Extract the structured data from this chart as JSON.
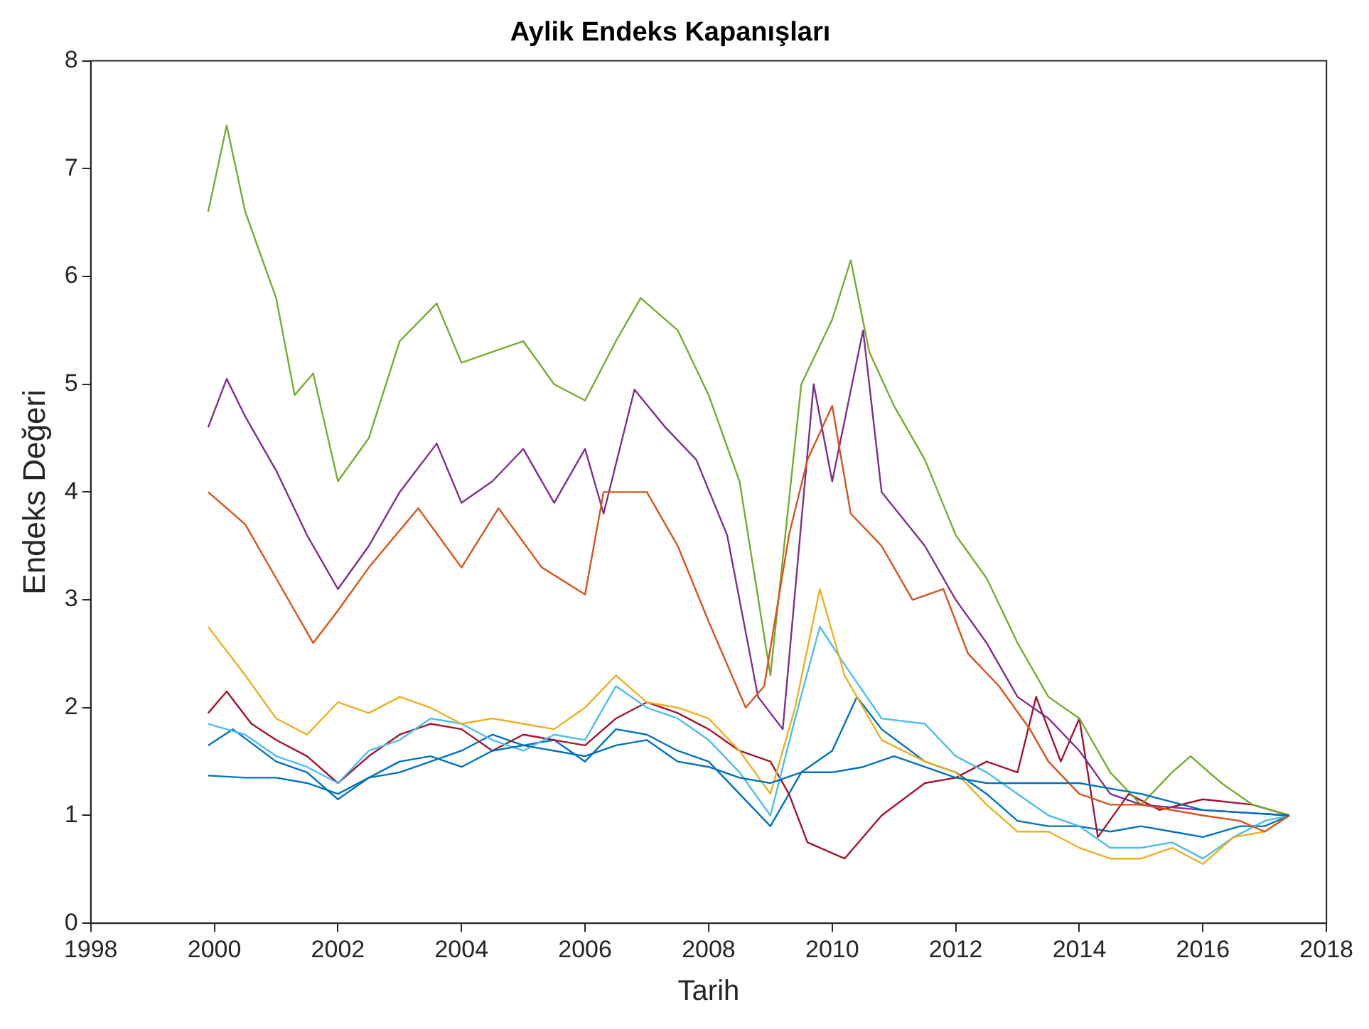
{
  "chart_data": {
    "type": "line",
    "title": "Aylik Endeks Kapanışları",
    "xlabel": "Tarih",
    "ylabel": "Endeks Değeri",
    "xlim": [
      1998,
      2018
    ],
    "xticks": [
      1998,
      2000,
      2002,
      2004,
      2006,
      2008,
      2010,
      2012,
      2014,
      2016,
      2018
    ],
    "ylim": [
      0,
      8
    ],
    "yticks": [
      0,
      1,
      2,
      3,
      4,
      5,
      6,
      7,
      8
    ],
    "grid": false,
    "legend": false,
    "marker": "none",
    "line_style": "solid",
    "series": [
      {
        "color": "#0072bd",
        "x": [
          1999.9,
          2000.5,
          2001,
          2001.5,
          2002,
          2002.5,
          2003,
          2003.5,
          2004,
          2004.5,
          2005,
          2005.5,
          2006,
          2006.5,
          2007,
          2007.5,
          2008,
          2008.5,
          2009,
          2009.5,
          2010,
          2010.5,
          2011,
          2011.5,
          2012,
          2012.5,
          2013,
          2013.5,
          2014,
          2014.5,
          2015,
          2016,
          2017.4
        ],
        "values": [
          1.37,
          1.35,
          1.35,
          1.3,
          1.2,
          1.35,
          1.5,
          1.55,
          1.45,
          1.6,
          1.65,
          1.6,
          1.55,
          1.65,
          1.7,
          1.5,
          1.45,
          1.35,
          1.3,
          1.4,
          1.4,
          1.45,
          1.55,
          1.45,
          1.35,
          1.3,
          1.3,
          1.3,
          1.3,
          1.25,
          1.2,
          1.05,
          1.0
        ]
      },
      {
        "color": "#d95319",
        "x": [
          1999.9,
          2000.5,
          2001,
          2001.6,
          2002,
          2002.5,
          2003.3,
          2004,
          2004.6,
          2005.3,
          2006,
          2006.3,
          2007,
          2007.5,
          2008,
          2008.6,
          2008.9,
          2009.3,
          2009.6,
          2010,
          2010.3,
          2010.8,
          2011.3,
          2011.8,
          2012.2,
          2012.7,
          2013.2,
          2013.5,
          2014,
          2014.5,
          2015,
          2016,
          2016.6,
          2017,
          2017.4
        ],
        "values": [
          4.0,
          3.7,
          3.2,
          2.6,
          2.9,
          3.3,
          3.85,
          3.3,
          3.85,
          3.3,
          3.05,
          4.0,
          4.0,
          3.5,
          2.8,
          2.0,
          2.2,
          3.6,
          4.3,
          4.8,
          3.8,
          3.5,
          3.0,
          3.1,
          2.5,
          2.2,
          1.8,
          1.5,
          1.2,
          1.1,
          1.1,
          1.0,
          0.95,
          0.85,
          1.0
        ]
      },
      {
        "color": "#edb120",
        "x": [
          1999.9,
          2000.5,
          2001,
          2001.5,
          2002,
          2002.5,
          2003,
          2003.5,
          2004,
          2004.5,
          2005,
          2005.5,
          2006,
          2006.5,
          2007,
          2007.5,
          2008,
          2008.5,
          2009,
          2009.4,
          2009.8,
          2010.2,
          2010.8,
          2011.5,
          2012,
          2012.5,
          2013,
          2013.5,
          2014,
          2014.5,
          2015,
          2015.5,
          2016,
          2016.5,
          2017,
          2017.4
        ],
        "values": [
          2.75,
          2.3,
          1.9,
          1.75,
          2.05,
          1.95,
          2.1,
          2.0,
          1.85,
          1.9,
          1.85,
          1.8,
          2.0,
          2.3,
          2.05,
          2.0,
          1.9,
          1.6,
          1.2,
          2.0,
          3.1,
          2.3,
          1.7,
          1.5,
          1.4,
          1.1,
          0.85,
          0.85,
          0.7,
          0.6,
          0.6,
          0.7,
          0.55,
          0.8,
          0.85,
          1.0
        ]
      },
      {
        "color": "#7e2f8e",
        "x": [
          1999.9,
          2000.2,
          2000.5,
          2001,
          2001.5,
          2002,
          2002.5,
          2003,
          2003.6,
          2004,
          2004.5,
          2005,
          2005.5,
          2006,
          2006.3,
          2006.8,
          2007.3,
          2007.8,
          2008.3,
          2008.8,
          2009.2,
          2009.7,
          2010,
          2010.5,
          2010.8,
          2011.5,
          2012,
          2012.5,
          2013,
          2013.5,
          2014,
          2014.5,
          2015,
          2016,
          2017.4
        ],
        "values": [
          4.6,
          5.05,
          4.7,
          4.2,
          3.6,
          3.1,
          3.5,
          4.0,
          4.45,
          3.9,
          4.1,
          4.4,
          3.9,
          4.4,
          3.8,
          4.95,
          4.6,
          4.3,
          3.6,
          2.1,
          1.8,
          5.0,
          4.1,
          5.5,
          4.0,
          3.5,
          3.0,
          2.6,
          2.1,
          1.9,
          1.6,
          1.2,
          1.1,
          1.05,
          1.0
        ]
      },
      {
        "color": "#77ac30",
        "x": [
          1999.9,
          2000.2,
          2000.5,
          2001,
          2001.3,
          2001.6,
          2002,
          2002.5,
          2003,
          2003.6,
          2004,
          2004.5,
          2005,
          2005.5,
          2006,
          2006.5,
          2006.9,
          2007.5,
          2008,
          2008.5,
          2009,
          2009.5,
          2010,
          2010.3,
          2010.6,
          2011,
          2011.5,
          2012,
          2012.5,
          2013,
          2013.5,
          2014,
          2014.5,
          2015,
          2015.5,
          2015.8,
          2016.3,
          2016.8,
          2017.4
        ],
        "values": [
          6.6,
          7.4,
          6.6,
          5.8,
          4.9,
          5.1,
          4.1,
          4.5,
          5.4,
          5.75,
          5.2,
          5.3,
          5.4,
          5.0,
          4.85,
          5.4,
          5.8,
          5.5,
          4.9,
          4.1,
          2.3,
          5.0,
          5.6,
          6.15,
          5.3,
          4.8,
          4.3,
          3.6,
          3.2,
          2.6,
          2.1,
          1.9,
          1.4,
          1.1,
          1.4,
          1.55,
          1.3,
          1.1,
          1.0
        ]
      },
      {
        "color": "#4dbeee",
        "x": [
          1999.9,
          2000.5,
          2001,
          2001.5,
          2002,
          2002.5,
          2003,
          2003.5,
          2004,
          2004.5,
          2005,
          2005.5,
          2006,
          2006.5,
          2007,
          2007.5,
          2008,
          2008.5,
          2009,
          2009.4,
          2009.8,
          2010.2,
          2010.8,
          2011.5,
          2012,
          2012.5,
          2013,
          2013.5,
          2014,
          2014.5,
          2015,
          2015.5,
          2016,
          2016.5,
          2017,
          2017.4
        ],
        "values": [
          1.85,
          1.75,
          1.55,
          1.45,
          1.3,
          1.6,
          1.7,
          1.9,
          1.85,
          1.7,
          1.6,
          1.75,
          1.7,
          2.2,
          2.0,
          1.9,
          1.7,
          1.4,
          1.0,
          1.9,
          2.75,
          2.4,
          1.9,
          1.85,
          1.55,
          1.4,
          1.2,
          1.0,
          0.9,
          0.7,
          0.7,
          0.75,
          0.6,
          0.8,
          0.95,
          1.0
        ]
      },
      {
        "color": "#a2142f",
        "x": [
          1999.9,
          2000.2,
          2000.6,
          2001,
          2001.5,
          2002,
          2002.5,
          2003,
          2003.5,
          2004,
          2004.5,
          2005,
          2005.5,
          2006,
          2006.5,
          2007,
          2007.5,
          2008,
          2008.5,
          2009,
          2009.3,
          2009.6,
          2010.2,
          2010.8,
          2011.5,
          2012,
          2012.5,
          2013,
          2013.3,
          2013.7,
          2014,
          2014.3,
          2014.8,
          2015.3,
          2016,
          2016.8,
          2017.4
        ],
        "values": [
          1.95,
          2.15,
          1.85,
          1.7,
          1.55,
          1.3,
          1.55,
          1.75,
          1.85,
          1.8,
          1.6,
          1.75,
          1.7,
          1.65,
          1.9,
          2.05,
          1.95,
          1.8,
          1.6,
          1.5,
          1.2,
          0.75,
          0.6,
          1.0,
          1.3,
          1.35,
          1.5,
          1.4,
          2.1,
          1.5,
          1.9,
          0.8,
          1.2,
          1.05,
          1.15,
          1.1,
          1.0
        ]
      },
      {
        "color": "#0072bd",
        "x": [
          1999.9,
          2000.3,
          2001,
          2001.5,
          2002,
          2002.5,
          2003,
          2003.5,
          2004,
          2004.5,
          2005,
          2005.5,
          2006,
          2006.5,
          2007,
          2007.5,
          2008,
          2008.5,
          2009,
          2009.5,
          2010,
          2010.4,
          2010.8,
          2011.5,
          2012,
          2012.5,
          2013,
          2013.5,
          2014,
          2014.5,
          2015,
          2015.5,
          2016,
          2016.6,
          2017,
          2017.4
        ],
        "values": [
          1.65,
          1.8,
          1.5,
          1.4,
          1.15,
          1.35,
          1.4,
          1.5,
          1.6,
          1.75,
          1.65,
          1.7,
          1.5,
          1.8,
          1.75,
          1.6,
          1.5,
          1.2,
          0.9,
          1.4,
          1.6,
          2.1,
          1.8,
          1.5,
          1.4,
          1.2,
          0.95,
          0.9,
          0.9,
          0.85,
          0.9,
          0.85,
          0.8,
          0.9,
          0.9,
          1.0
        ]
      }
    ]
  }
}
